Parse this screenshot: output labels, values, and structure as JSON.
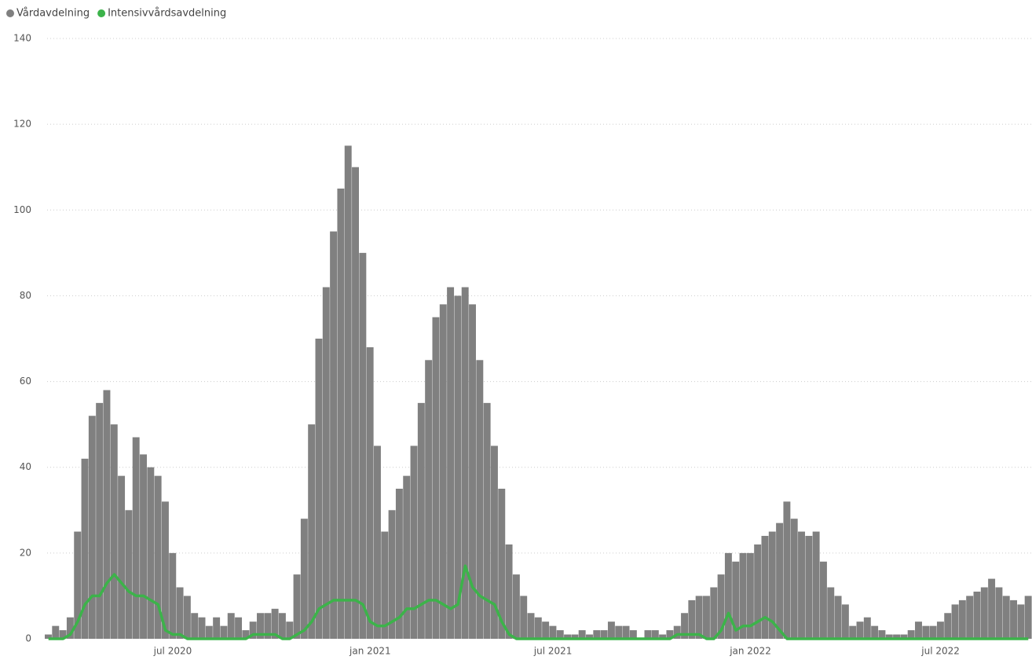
{
  "chart_data": {
    "type": "bar",
    "categories": [
      null,
      null,
      null,
      null,
      null,
      null,
      null,
      null,
      null,
      null,
      null,
      null,
      null,
      null,
      null,
      null,
      null,
      "jul 2020",
      null,
      null,
      null,
      null,
      null,
      null,
      null,
      null,
      null,
      null,
      null,
      null,
      null,
      null,
      null,
      null,
      null,
      null,
      null,
      null,
      null,
      null,
      null,
      null,
      null,
      null,
      "jan 2021",
      null,
      null,
      null,
      null,
      null,
      null,
      null,
      null,
      null,
      null,
      null,
      null,
      null,
      null,
      null,
      null,
      null,
      null,
      null,
      null,
      null,
      null,
      null,
      null,
      "jul 2021",
      null,
      null,
      null,
      null,
      null,
      null,
      null,
      null,
      null,
      null,
      null,
      null,
      null,
      null,
      null,
      null,
      null,
      null,
      null,
      null,
      null,
      null,
      null,
      null,
      null,
      null,
      "jan 2022",
      null,
      null,
      null,
      null,
      null,
      null,
      null,
      null,
      null,
      null,
      null,
      null,
      null,
      null,
      null,
      null,
      null,
      null,
      null,
      null,
      null,
      null,
      null,
      null,
      null,
      "jul 2022",
      null,
      null,
      null,
      null,
      null,
      null,
      null,
      null,
      null,
      null,
      null,
      null
    ],
    "series": [
      {
        "name": "Vårdavdelning",
        "color": "#808080",
        "type": "bar",
        "values": [
          1,
          3,
          2,
          5,
          25,
          42,
          52,
          55,
          58,
          50,
          38,
          30,
          47,
          43,
          40,
          38,
          32,
          20,
          12,
          10,
          6,
          5,
          3,
          5,
          3,
          6,
          5,
          2,
          4,
          6,
          6,
          7,
          6,
          4,
          15,
          28,
          50,
          70,
          82,
          95,
          105,
          115,
          110,
          90,
          68,
          45,
          25,
          30,
          35,
          38,
          45,
          55,
          65,
          75,
          78,
          82,
          80,
          82,
          78,
          65,
          55,
          45,
          35,
          22,
          15,
          10,
          6,
          5,
          4,
          3,
          2,
          1,
          1,
          2,
          1,
          2,
          2,
          4,
          3,
          3,
          2,
          0,
          2,
          2,
          1,
          2,
          3,
          6,
          9,
          10,
          10,
          12,
          15,
          20,
          18,
          20,
          20,
          22,
          24,
          25,
          27,
          32,
          28,
          25,
          24,
          25,
          18,
          12,
          10,
          8,
          3,
          4,
          5,
          3,
          2,
          1,
          1,
          1,
          2,
          4,
          3,
          3,
          4,
          6,
          8,
          9,
          10,
          11,
          12,
          14,
          12,
          10,
          9,
          8,
          10
        ]
      },
      {
        "name": "Intensivvårdsavdelning",
        "color": "#3cb34a",
        "type": "line",
        "values": [
          0,
          0,
          0,
          1,
          4,
          8,
          10,
          10,
          13,
          15,
          13,
          11,
          10,
          10,
          9,
          8,
          2,
          1,
          1,
          0,
          0,
          0,
          0,
          0,
          0,
          0,
          0,
          0,
          1,
          1,
          1,
          1,
          0,
          0,
          1,
          2,
          4,
          7,
          8,
          9,
          9,
          9,
          9,
          8,
          4,
          3,
          3,
          4,
          5,
          7,
          7,
          8,
          9,
          9,
          8,
          7,
          8,
          17,
          12,
          10,
          9,
          8,
          4,
          1,
          0,
          0,
          0,
          0,
          0,
          0,
          0,
          0,
          0,
          0,
          0,
          0,
          0,
          0,
          0,
          0,
          0,
          0,
          0,
          0,
          0,
          0,
          1,
          1,
          1,
          1,
          0,
          0,
          2,
          6,
          2,
          3,
          3,
          4,
          5,
          4,
          2,
          0,
          0,
          0,
          0,
          0,
          0,
          0,
          0,
          0,
          0,
          0,
          0,
          0,
          0,
          0,
          0,
          0,
          0,
          0,
          0,
          0,
          0,
          0,
          0,
          0,
          0,
          0,
          0,
          0,
          0,
          0,
          0,
          0,
          0
        ]
      }
    ],
    "ylim": [
      0,
      140
    ],
    "yticks": [
      0,
      20,
      40,
      60,
      80,
      100,
      120,
      140
    ],
    "grid": true,
    "legend": "top-left"
  }
}
